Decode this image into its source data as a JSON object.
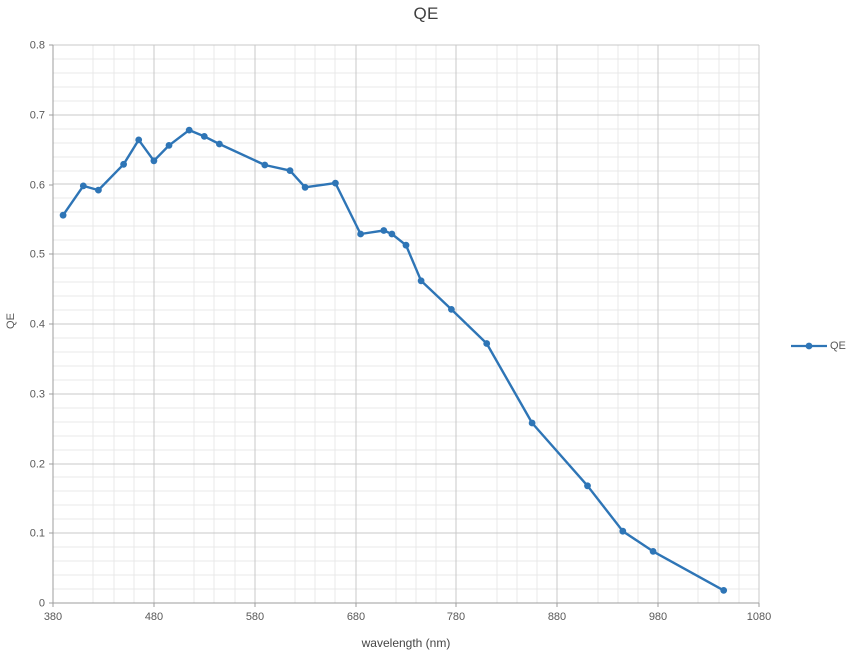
{
  "page": {
    "background": "#FFFFFF"
  },
  "chart_data": {
    "type": "line",
    "title": "QE",
    "xlabel": "wavelength (nm)",
    "ylabel": "QE",
    "legend": {
      "position": "right",
      "entries": [
        "QE"
      ]
    },
    "x": [
      390,
      410,
      425,
      450,
      465,
      480,
      495,
      515,
      530,
      545,
      590,
      615,
      630,
      660,
      685,
      708,
      716,
      730,
      745,
      775,
      810,
      855,
      910,
      945,
      975,
      1045
    ],
    "series": [
      {
        "name": "QE",
        "values": [
          0.556,
          0.598,
          0.592,
          0.629,
          0.664,
          0.634,
          0.656,
          0.678,
          0.669,
          0.658,
          0.628,
          0.62,
          0.596,
          0.602,
          0.529,
          0.534,
          0.529,
          0.513,
          0.462,
          0.421,
          0.372,
          0.258,
          0.168,
          0.103,
          0.074,
          0.018
        ]
      }
    ],
    "xlim": [
      380,
      1080
    ],
    "ylim": [
      0,
      0.8
    ],
    "x_major_step": 100,
    "x_minor_step": 20,
    "y_major_step": 0.1,
    "y_minor_step": 0.02,
    "x_tick_labels": [
      "380",
      "480",
      "580",
      "680",
      "780",
      "880",
      "980",
      "1080"
    ],
    "y_tick_labels": [
      "0",
      "0.1",
      "0.2",
      "0.3",
      "0.4",
      "0.5",
      "0.6",
      "0.7",
      "0.8"
    ],
    "grid": "major+minor",
    "legend_position": "right",
    "colors": {
      "series": "#2E75B6",
      "minor_grid": "#E9E9E9",
      "major_grid": "#C9C9C9",
      "axis": "#9D9D9D",
      "tick_text": "#595959",
      "title_text": "#3F3F3F"
    }
  }
}
